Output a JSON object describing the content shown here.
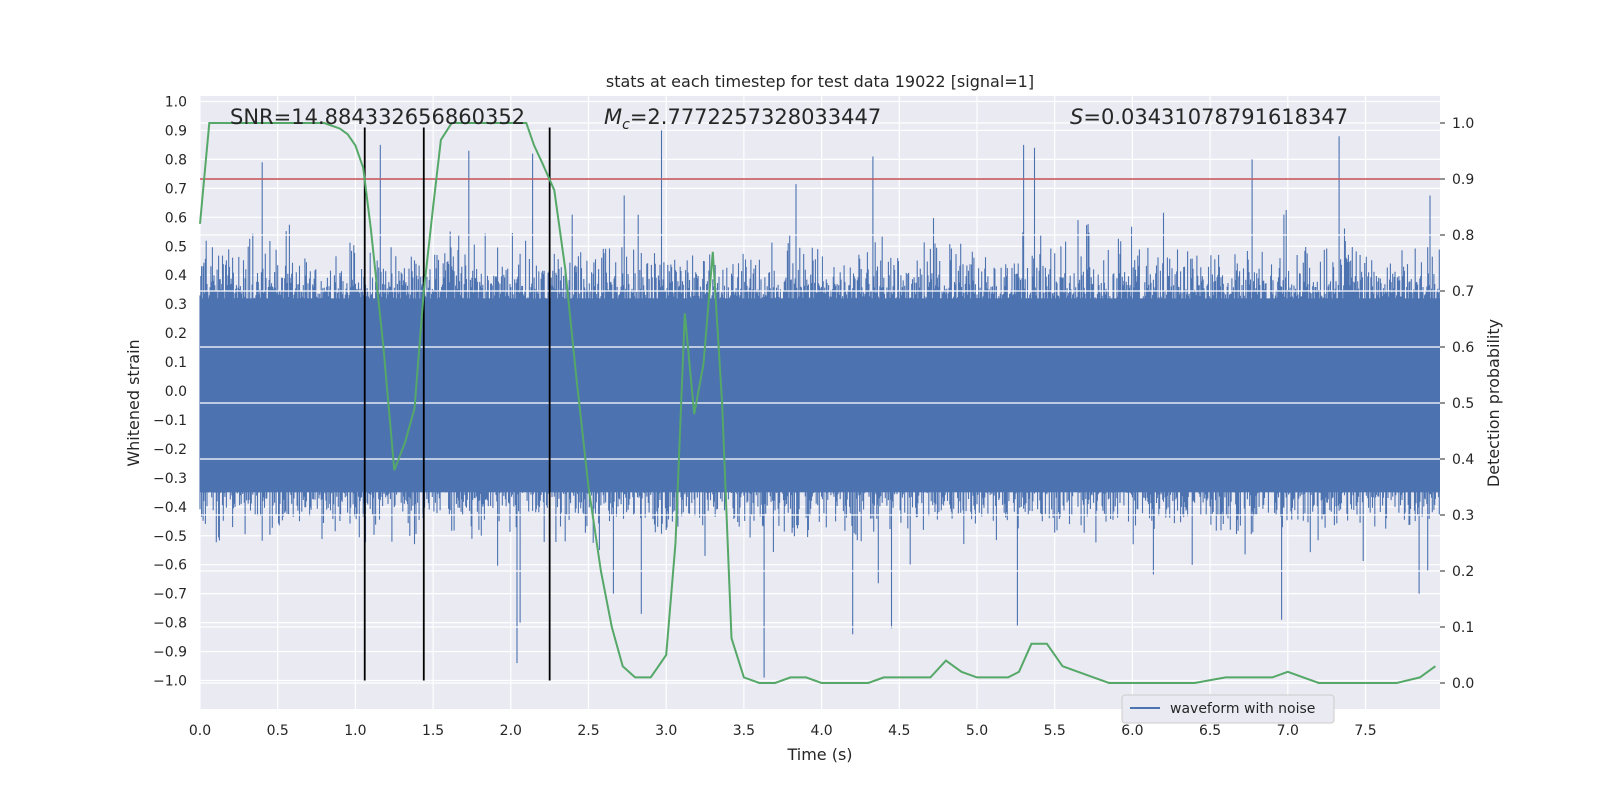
{
  "chart_data": {
    "type": "line",
    "title": "stats at each timestep for test data 19022 [signal=1]",
    "xlabel": "Time (s)",
    "ylabel": "Whitened strain",
    "y2label": "Detection probability",
    "xlim": [
      0.0,
      8.0
    ],
    "ylim": [
      -1.1,
      1.0
    ],
    "y2lim": [
      -0.045,
      1.045
    ],
    "xticks": [
      0.0,
      0.5,
      1.0,
      1.5,
      2.0,
      2.5,
      3.0,
      3.5,
      4.0,
      4.5,
      5.0,
      5.5,
      6.0,
      6.5,
      7.0,
      7.5
    ],
    "yticks": [
      -1.0,
      -0.9,
      -0.8,
      -0.7,
      -0.6,
      -0.5,
      -0.4,
      -0.3,
      -0.2,
      -0.1,
      0.0,
      0.1,
      0.2,
      0.3,
      0.4,
      0.5,
      0.6,
      0.7,
      0.8,
      0.9,
      1.0
    ],
    "y2ticks": [
      0.0,
      0.1,
      0.2,
      0.3,
      0.4,
      0.5,
      0.6,
      0.7,
      0.8,
      0.9,
      1.0
    ],
    "grid": true,
    "legend_position": "lower-right",
    "annotations": {
      "snr": "SNR=14.884332656860352",
      "mc_symbol": "M",
      "mc_sub": "c",
      "mc_value": "=2.7772257328033447",
      "s_symbol": "S",
      "s_value": "=0.03431078791618347"
    },
    "threshold_y2": 0.9,
    "vlines_x": [
      1.06,
      1.44,
      2.25
    ],
    "vline_ymin": -1.0,
    "vline_ymax": 0.91,
    "series": [
      {
        "name": "waveform with noise",
        "axis": "left",
        "color": "#4c72b0",
        "description_samples": "dense noisy strain, roughly -0.5..0.5 with peaks to ~0.9 and dips to ~-1.0",
        "peaks_pos": [
          [
            0.4,
            0.79
          ],
          [
            1.16,
            0.85
          ],
          [
            1.73,
            0.83
          ],
          [
            2.14,
            0.82
          ],
          [
            2.97,
            0.9
          ],
          [
            4.33,
            0.81
          ],
          [
            5.3,
            0.85
          ],
          [
            5.37,
            0.84
          ],
          [
            6.77,
            0.8
          ],
          [
            7.33,
            0.88
          ]
        ],
        "peaks_neg": [
          [
            2.04,
            -0.94
          ],
          [
            2.06,
            -0.8
          ],
          [
            2.84,
            -0.77
          ],
          [
            3.63,
            -0.99
          ],
          [
            4.2,
            -0.84
          ],
          [
            4.45,
            -0.82
          ],
          [
            5.26,
            -0.81
          ],
          [
            6.96,
            -0.79
          ],
          [
            7.9,
            -0.62
          ]
        ]
      },
      {
        "name": "detection probability",
        "axis": "right",
        "color": "#55a868",
        "x": [
          0.0,
          0.06,
          0.12,
          0.2,
          0.3,
          0.4,
          0.5,
          0.6,
          0.7,
          0.8,
          0.9,
          0.95,
          1.0,
          1.05,
          1.1,
          1.18,
          1.25,
          1.32,
          1.38,
          1.44,
          1.5,
          1.55,
          1.62,
          1.7,
          1.8,
          1.9,
          2.0,
          2.1,
          2.15,
          2.2,
          2.28,
          2.35,
          2.42,
          2.5,
          2.58,
          2.65,
          2.72,
          2.8,
          2.9,
          3.0,
          3.06,
          3.12,
          3.18,
          3.24,
          3.3,
          3.36,
          3.42,
          3.5,
          3.6,
          3.7,
          3.8,
          3.9,
          4.0,
          4.1,
          4.2,
          4.3,
          4.4,
          4.5,
          4.6,
          4.7,
          4.8,
          4.9,
          5.0,
          5.1,
          5.2,
          5.27,
          5.35,
          5.45,
          5.55,
          5.65,
          5.75,
          5.85,
          6.0,
          6.2,
          6.4,
          6.6,
          6.8,
          6.9,
          7.0,
          7.1,
          7.2,
          7.3,
          7.5,
          7.7,
          7.85,
          7.95
        ],
        "y": [
          0.82,
          1.0,
          1.0,
          1.0,
          1.0,
          1.0,
          1.0,
          1.0,
          1.0,
          1.0,
          0.99,
          0.98,
          0.96,
          0.92,
          0.81,
          0.6,
          0.38,
          0.43,
          0.49,
          0.7,
          0.85,
          0.97,
          1.0,
          1.0,
          1.0,
          1.0,
          1.0,
          1.0,
          0.96,
          0.93,
          0.88,
          0.74,
          0.55,
          0.35,
          0.2,
          0.1,
          0.03,
          0.01,
          0.01,
          0.05,
          0.25,
          0.66,
          0.48,
          0.57,
          0.77,
          0.5,
          0.08,
          0.01,
          0.0,
          0.0,
          0.01,
          0.01,
          0.0,
          0.0,
          0.0,
          0.0,
          0.01,
          0.01,
          0.01,
          0.01,
          0.04,
          0.02,
          0.01,
          0.01,
          0.01,
          0.02,
          0.07,
          0.07,
          0.03,
          0.02,
          0.01,
          0.0,
          0.0,
          0.0,
          0.0,
          0.01,
          0.01,
          0.01,
          0.02,
          0.01,
          0.0,
          0.0,
          0.0,
          0.0,
          0.01,
          0.03
        ]
      }
    ]
  }
}
